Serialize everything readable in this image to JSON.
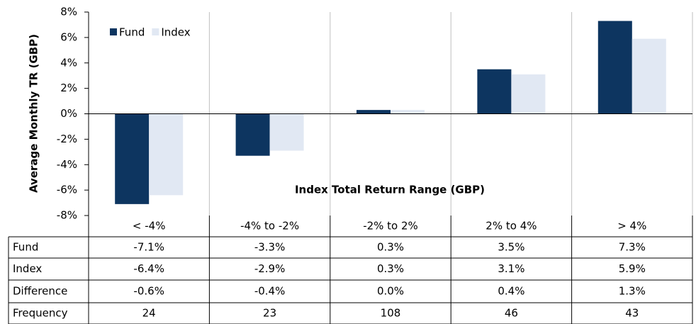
{
  "chart_data": {
    "type": "bar",
    "ylabel": "Average Monthly TR (GBP)",
    "xlabel": "Index Total Return Range (GBP)",
    "categories": [
      "< -4%",
      "-4% to -2%",
      "-2% to 2%",
      "2% to 4%",
      "> 4%"
    ],
    "series": [
      {
        "name": "Fund",
        "color": "#0d3560",
        "values": [
          -7.1,
          -3.3,
          0.3,
          3.5,
          7.3
        ],
        "value_labels": [
          "-7.1%",
          "-3.3%",
          "0.3%",
          "3.5%",
          "7.3%"
        ]
      },
      {
        "name": "Index",
        "color": "#e1e8f3",
        "values": [
          -6.4,
          -2.9,
          0.3,
          3.1,
          5.9
        ],
        "value_labels": [
          "-6.4%",
          "-2.9%",
          "0.3%",
          "3.1%",
          "5.9%"
        ]
      }
    ],
    "table_rows": [
      {
        "name": "Difference",
        "cells": [
          "-0.6%",
          "-0.4%",
          "0.0%",
          "0.4%",
          "1.3%"
        ]
      },
      {
        "name": "Frequency",
        "cells": [
          24,
          23,
          108,
          46,
          43
        ]
      }
    ],
    "ylim": [
      -8,
      8
    ],
    "yticks": [
      {
        "value": -8,
        "label": "-8%"
      },
      {
        "value": -6,
        "label": "-6%"
      },
      {
        "value": -4,
        "label": "-4%"
      },
      {
        "value": -2,
        "label": "-2%"
      },
      {
        "value": 0,
        "label": "0%"
      },
      {
        "value": 2,
        "label": "2%"
      },
      {
        "value": 4,
        "label": "4%"
      },
      {
        "value": 6,
        "label": "6%"
      },
      {
        "value": 8,
        "label": "8%"
      }
    ],
    "legend": "upper left"
  }
}
